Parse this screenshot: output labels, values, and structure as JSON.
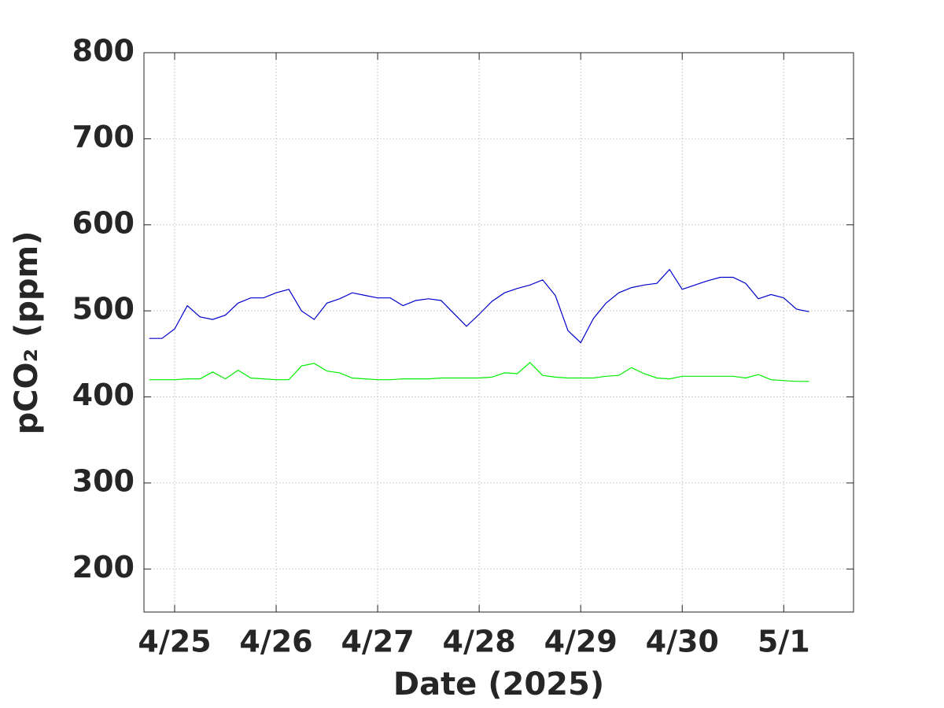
{
  "chart_data": {
    "type": "line",
    "xlabel": "Date (2025)",
    "ylabel": "pCO₂ (ppm)",
    "x": [
      "2025-04-24T18:00",
      "2025-04-24T21:00",
      "2025-04-25T00:00",
      "2025-04-25T03:00",
      "2025-04-25T06:00",
      "2025-04-25T09:00",
      "2025-04-25T12:00",
      "2025-04-25T15:00",
      "2025-04-25T18:00",
      "2025-04-25T21:00",
      "2025-04-26T00:00",
      "2025-04-26T03:00",
      "2025-04-26T06:00",
      "2025-04-26T09:00",
      "2025-04-26T12:00",
      "2025-04-26T15:00",
      "2025-04-26T18:00",
      "2025-04-26T21:00",
      "2025-04-27T00:00",
      "2025-04-27T03:00",
      "2025-04-27T06:00",
      "2025-04-27T09:00",
      "2025-04-27T12:00",
      "2025-04-27T15:00",
      "2025-04-27T18:00",
      "2025-04-27T21:00",
      "2025-04-28T00:00",
      "2025-04-28T03:00",
      "2025-04-28T06:00",
      "2025-04-28T09:00",
      "2025-04-28T12:00",
      "2025-04-28T15:00",
      "2025-04-28T18:00",
      "2025-04-28T21:00",
      "2025-04-29T00:00",
      "2025-04-29T03:00",
      "2025-04-29T06:00",
      "2025-04-29T09:00",
      "2025-04-29T12:00",
      "2025-04-29T15:00",
      "2025-04-29T18:00",
      "2025-04-29T21:00",
      "2025-04-30T00:00",
      "2025-04-30T03:00",
      "2025-04-30T06:00",
      "2025-04-30T09:00",
      "2025-04-30T12:00",
      "2025-04-30T15:00",
      "2025-04-30T18:00",
      "2025-04-30T21:00",
      "2025-05-01T00:00",
      "2025-05-01T03:00",
      "2025-05-01T06:00"
    ],
    "series": [
      {
        "color": "#0000cc",
        "values": [
          468,
          468,
          479,
          506,
          493,
          490,
          495,
          509,
          515,
          515,
          521,
          525,
          500,
          490,
          509,
          514,
          521,
          518,
          515,
          515,
          506,
          512,
          514,
          512,
          497,
          482,
          496,
          511,
          521,
          526,
          530,
          536,
          518,
          477,
          463,
          491,
          509,
          521,
          527,
          530,
          532,
          548,
          525,
          530,
          535,
          539,
          539,
          532,
          514,
          519,
          515,
          502,
          499
        ]
      },
      {
        "color": "#00ee00",
        "values": [
          420,
          420,
          420,
          421,
          421,
          429,
          421,
          431,
          422,
          421,
          420,
          420,
          436,
          439,
          430,
          428,
          422,
          421,
          420,
          420,
          421,
          421,
          421,
          422,
          422,
          422,
          422,
          423,
          428,
          427,
          440,
          425,
          423,
          422,
          422,
          422,
          424,
          425,
          434,
          427,
          422,
          421,
          424,
          424,
          424,
          424,
          424,
          422,
          426,
          420,
          419,
          418,
          418
        ]
      }
    ],
    "xlim": [
      "2025-04-24T16:45",
      "2025-05-01T16:30"
    ],
    "xticks": [
      {
        "value": "2025-04-25T00:00",
        "label": "4/25"
      },
      {
        "value": "2025-04-26T00:00",
        "label": "4/26"
      },
      {
        "value": "2025-04-27T00:00",
        "label": "4/27"
      },
      {
        "value": "2025-04-28T00:00",
        "label": "4/28"
      },
      {
        "value": "2025-04-29T00:00",
        "label": "4/29"
      },
      {
        "value": "2025-04-30T00:00",
        "label": "4/30"
      },
      {
        "value": "2025-05-01T00:00",
        "label": "5/1"
      }
    ],
    "ylim": [
      150,
      800
    ],
    "yticks": [
      200,
      300,
      400,
      500,
      600,
      700,
      800
    ],
    "grid": true
  }
}
